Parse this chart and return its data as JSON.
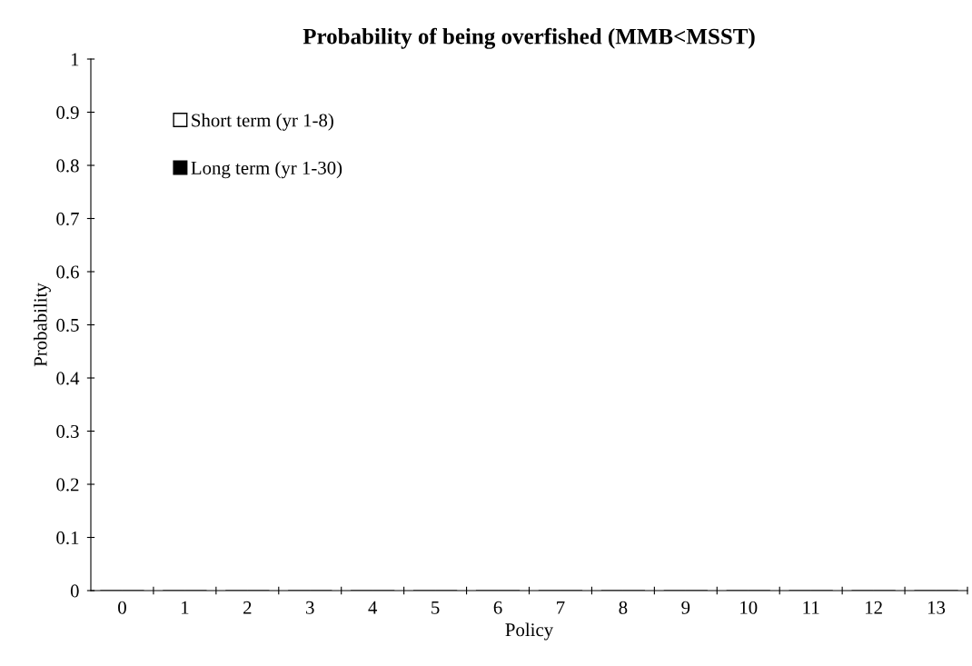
{
  "chart_data": {
    "type": "bar",
    "title": "Probability of being overfished (MMB<MSST)",
    "xlabel": "Policy",
    "ylabel": "Probability",
    "categories": [
      "0",
      "1",
      "2",
      "3",
      "4",
      "5",
      "6",
      "7",
      "8",
      "9",
      "10",
      "11",
      "12",
      "13"
    ],
    "series": [
      {
        "name": "Short term (yr 1-8)",
        "color": "#ffffff",
        "values": [
          0,
          0,
          0,
          0,
          0,
          0,
          0,
          0,
          0,
          0,
          0,
          0,
          0,
          0
        ]
      },
      {
        "name": "Long term (yr 1-30)",
        "color": "#000000",
        "values": [
          0,
          0,
          0,
          0,
          0,
          0,
          0,
          0,
          0,
          0,
          0,
          0,
          0,
          0
        ]
      }
    ],
    "ylim": [
      0,
      1
    ],
    "yticks": [
      0,
      0.1,
      0.2,
      0.3,
      0.4,
      0.5,
      0.6,
      0.7,
      0.8,
      0.9,
      1
    ],
    "grid": false,
    "legend": "top left"
  }
}
